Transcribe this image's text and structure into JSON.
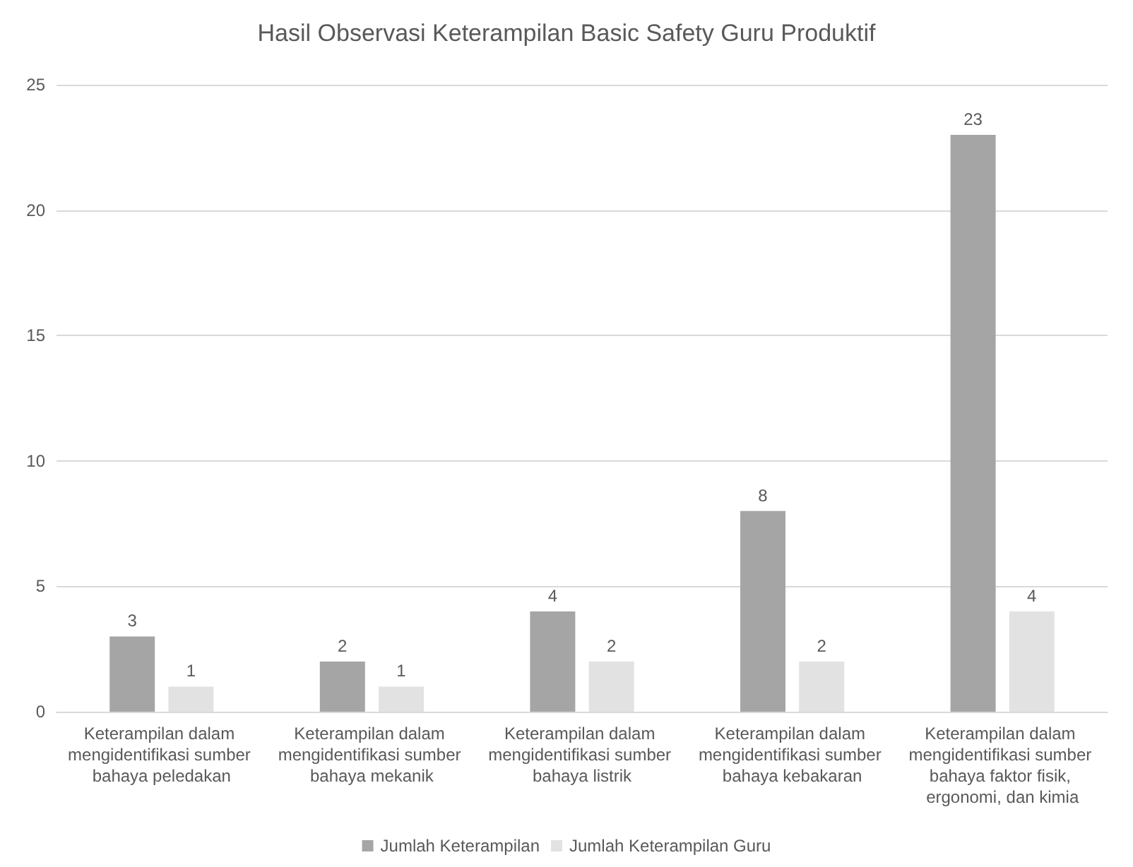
{
  "chart_data": {
    "type": "bar",
    "title": "Hasil Observasi Keterampilan Basic Safety Guru Produktif",
    "categories": [
      "Keterampilan dalam mengidentifikasi sumber bahaya peledakan",
      "Keterampilan dalam mengidentifikasi sumber bahaya mekanik",
      "Keterampilan dalam mengidentifikasi sumber bahaya listrik",
      "Keterampilan dalam mengidentifikasi sumber bahaya kebakaran",
      "Keterampilan dalam mengidentifikasi sumber bahaya faktor fisik, ergonomi, dan kimia"
    ],
    "series": [
      {
        "name": "Jumlah Keterampilan",
        "color": "#a5a5a5",
        "values": [
          3,
          2,
          4,
          8,
          23
        ]
      },
      {
        "name": "Jumlah Keterampilan Guru",
        "color": "#e2e2e2",
        "values": [
          1,
          1,
          2,
          2,
          4
        ]
      }
    ],
    "ylim": [
      0,
      25
    ],
    "yticks": [
      0,
      5,
      10,
      15,
      20,
      25
    ],
    "grid": "y",
    "legend": "bottom",
    "data_labels": true
  }
}
